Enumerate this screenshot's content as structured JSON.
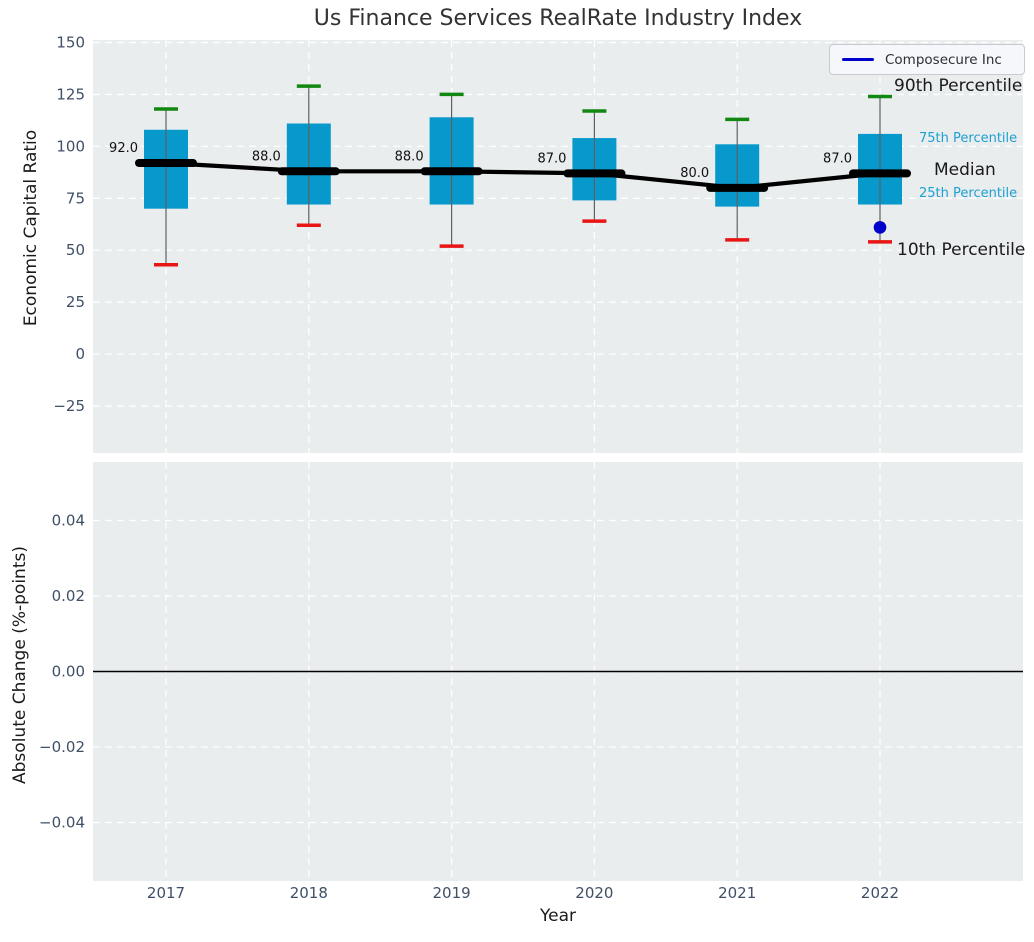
{
  "title": "Us Finance Services RealRate Industry Index",
  "legend": {
    "label": "Composecure Inc",
    "line_color": "#0000cc"
  },
  "annotations": {
    "p90": "90th Percentile",
    "p75": "75th Percentile",
    "median": "Median",
    "p25": "25th Percentile",
    "p10": "10th Percentile"
  },
  "colors": {
    "panel_bg": "#e9edee",
    "grid": "#ffffff",
    "box_fill": "#0899cc",
    "p90_cap": "#128712",
    "p10_cap": "#e81515",
    "whisker": "#606060",
    "median_line": "#000000",
    "point": "#0000cc",
    "tick_label": "#3f5066",
    "zero_line": "#000000",
    "annotation_blue": "#1ea0d2"
  },
  "chart_data": [
    {
      "type": "box",
      "title": "Us Finance Services RealRate Industry Index",
      "xlabel": "Year",
      "ylabel": "Economic Capital Ratio",
      "categories": [
        "2017",
        "2018",
        "2019",
        "2020",
        "2021",
        "2022"
      ],
      "series": [
        {
          "name": "90th Percentile",
          "values": [
            118,
            129,
            125,
            117,
            113,
            124
          ]
        },
        {
          "name": "75th Percentile",
          "values": [
            108,
            111,
            114,
            104,
            101,
            106
          ]
        },
        {
          "name": "Median",
          "values": [
            92,
            88,
            88,
            87,
            80,
            87
          ]
        },
        {
          "name": "25th Percentile",
          "values": [
            70,
            72,
            72,
            74,
            71,
            72
          ]
        },
        {
          "name": "10th Percentile",
          "values": [
            43,
            62,
            52,
            64,
            55,
            54
          ]
        }
      ],
      "median_labels": [
        "92.0",
        "88.0",
        "88.0",
        "87.0",
        "80.0",
        "87.0"
      ],
      "points": [
        {
          "name": "Composecure Inc",
          "category": "2022",
          "value": 61
        }
      ],
      "yticks": [
        150,
        125,
        100,
        75,
        50,
        25,
        0,
        -25
      ],
      "ytick_labels": [
        "150",
        "125",
        "100",
        "75",
        "50",
        "25",
        "0",
        "−25"
      ],
      "ylim": [
        -47.6,
        151.2
      ],
      "grid": true,
      "legend_position": "upper right"
    },
    {
      "type": "line",
      "xlabel": "Year",
      "ylabel": "Absolute Change (%-points)",
      "categories": [
        "2017",
        "2018",
        "2019",
        "2020",
        "2021",
        "2022"
      ],
      "series": [],
      "yticks": [
        0.04,
        0.02,
        0.0,
        -0.02,
        -0.04
      ],
      "ytick_labels": [
        "0.04",
        "0.02",
        "0.00",
        "−0.02",
        "−0.04"
      ],
      "ylim": [
        -0.0555,
        0.0555
      ],
      "zero_line": true,
      "grid": true
    }
  ]
}
